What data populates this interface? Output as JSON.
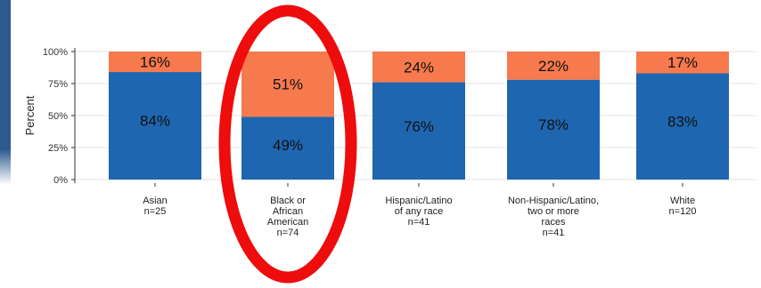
{
  "colors": {
    "series_bottom": "#1f66b0",
    "series_top": "#f7794e",
    "highlight_ring": "#ee0c0c",
    "accent_bar": "#2c5a8f",
    "gridline": "#e6e6e6",
    "axis": "#333333"
  },
  "highlight": {
    "category_index": 1,
    "shape": "ellipse-outline"
  },
  "chart_data": {
    "type": "bar",
    "stacked": true,
    "ylabel": "Percent",
    "ylim": [
      0,
      100
    ],
    "yticks": [
      {
        "value": 0,
        "label": "0%"
      },
      {
        "value": 25,
        "label": "25%"
      },
      {
        "value": 50,
        "label": "50%"
      },
      {
        "value": 75,
        "label": "75%"
      },
      {
        "value": 100,
        "label": "100%"
      }
    ],
    "grid": true,
    "legend": "none",
    "categories": [
      {
        "label_lines": [
          "Asian",
          "n=25"
        ]
      },
      {
        "label_lines": [
          "Black or",
          "African",
          "American",
          "n=74"
        ]
      },
      {
        "label_lines": [
          "Hispanic/Latino",
          "of any race",
          "n=41"
        ]
      },
      {
        "label_lines": [
          "Non-Hispanic/Latino,",
          "two or more",
          "races",
          "n=41"
        ]
      },
      {
        "label_lines": [
          "White",
          "n=120"
        ]
      }
    ],
    "series": [
      {
        "values": [
          84,
          49,
          76,
          78,
          83
        ],
        "labels": [
          "84%",
          "49%",
          "76%",
          "78%",
          "83%"
        ],
        "color": "#1f66b0"
      },
      {
        "values": [
          16,
          51,
          24,
          22,
          17
        ],
        "labels": [
          "16%",
          "51%",
          "24%",
          "22%",
          "17%"
        ],
        "color": "#f7794e"
      }
    ]
  }
}
